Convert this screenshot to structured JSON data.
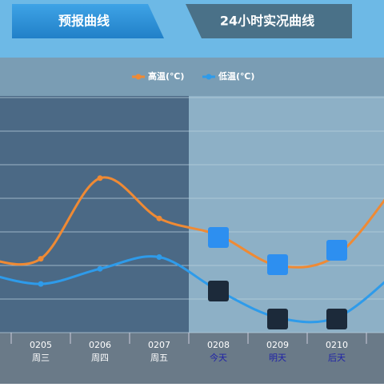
{
  "tabs": [
    "预报曲线",
    "24小时实况曲线"
  ],
  "chart_data": {
    "type": "line",
    "categories": [
      null,
      "0205",
      "0206",
      "0207",
      "0208",
      "0209",
      "0210",
      null
    ],
    "weekdays": [
      null,
      "周三",
      "周四",
      "周五",
      "今天",
      "明天",
      "后天",
      null
    ],
    "series": [
      {
        "name": "高温(℃)",
        "color": "#ef8a34",
        "values": [
          2.24,
          2.2,
          4.6,
          3.4,
          2.9,
          2.0,
          2.3,
          4.4
        ]
      },
      {
        "name": "低温(℃)",
        "color": "#2e9bea",
        "values": [
          1.8,
          1.45,
          1.9,
          2.25,
          1.25,
          0.45,
          0.45,
          1.8
        ]
      }
    ],
    "ylim": [
      0,
      7
    ],
    "yticks": [
      0,
      1,
      2,
      3,
      4,
      5,
      6,
      7
    ],
    "grid": true
  }
}
